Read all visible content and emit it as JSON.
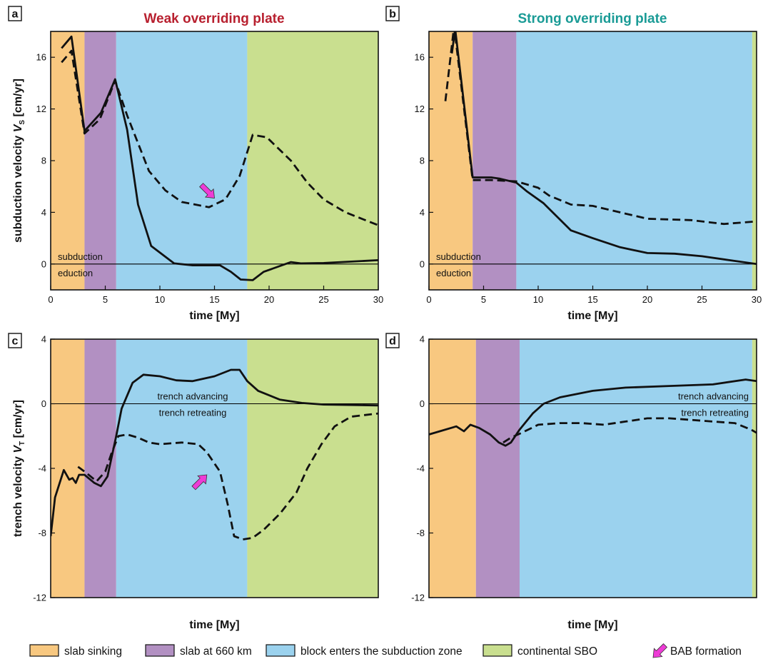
{
  "colors": {
    "slab_sinking": "#f8c880",
    "slab_660": "#b290c2",
    "block_enters": "#9bd2ee",
    "continental_sbo": "#c9df8f",
    "arrow": "#ee3bd6",
    "weak_title": "#b8202f",
    "strong_title": "#1a9b96"
  },
  "legend": [
    {
      "label": "slab sinking",
      "color_key": "slab_sinking",
      "icon": "swatch"
    },
    {
      "label": "slab at 660 km",
      "color_key": "slab_660",
      "icon": "swatch"
    },
    {
      "label": "block enters the subduction zone",
      "color_key": "block_enters",
      "icon": "swatch"
    },
    {
      "label": "continental SBO",
      "color_key": "continental_sbo",
      "icon": "swatch"
    },
    {
      "label": "BAB formation",
      "color_key": "arrow",
      "icon": "pink-arrow-icon"
    }
  ],
  "chart_data": [
    {
      "panel": "a",
      "type": "line",
      "title": "Weak overriding plate",
      "title_color_key": "weak_title",
      "xlabel": "time [My]",
      "ylabel": "subduction velocity V",
      "ylabel_sub": "S",
      "ylabel_unit": "[cm/yr]",
      "xlim": [
        0,
        30
      ],
      "ylim": [
        -2,
        18
      ],
      "xticks": [
        0,
        5,
        10,
        15,
        20,
        25,
        30
      ],
      "yticks": [
        0,
        4,
        8,
        12,
        16
      ],
      "phases": [
        {
          "from": 0,
          "to": 3.1,
          "color_key": "slab_sinking"
        },
        {
          "from": 3.1,
          "to": 6,
          "color_key": "slab_660"
        },
        {
          "from": 6,
          "to": 18,
          "color_key": "block_enters"
        },
        {
          "from": 18,
          "to": 30,
          "color_key": "continental_sbo"
        }
      ],
      "zero_labels": {
        "above": "subduction",
        "below": "eduction"
      },
      "arrow": {
        "x": 15,
        "y": 5.1,
        "direction": "down-right"
      },
      "series": [
        {
          "style": "solid",
          "x": [
            1,
            1.9,
            3.1,
            4.6,
            5.9,
            7,
            8,
            9.2,
            11.3,
            13,
            15.5,
            16.5,
            17.4,
            18.5,
            19.5,
            22,
            22.9,
            25,
            30
          ],
          "y": [
            16.7,
            17.6,
            10.3,
            11.7,
            14.3,
            10.4,
            4.6,
            1.4,
            0.05,
            -0.1,
            -0.1,
            -0.6,
            -1.2,
            -1.25,
            -0.6,
            0.15,
            0.05,
            0.08,
            0.3
          ]
        },
        {
          "style": "dashed",
          "x": [
            1,
            1.9,
            3.1,
            4.5,
            5.9,
            7,
            9,
            10.5,
            12,
            14.5,
            16,
            17.3,
            18.5,
            19.8,
            22,
            23.5,
            25,
            27,
            30
          ],
          "y": [
            15.6,
            16.5,
            10.1,
            11.2,
            14.2,
            11.5,
            7.2,
            5.7,
            4.8,
            4.4,
            5.0,
            6.8,
            10.0,
            9.8,
            8.0,
            6.3,
            5.0,
            4.0,
            3.0
          ]
        }
      ]
    },
    {
      "panel": "b",
      "type": "line",
      "title": "Strong overriding plate",
      "title_color_key": "strong_title",
      "xlabel": "time [My]",
      "ylabel": "",
      "xlim": [
        0,
        30
      ],
      "ylim": [
        -2,
        18
      ],
      "xticks": [
        0,
        5,
        10,
        15,
        20,
        25,
        30
      ],
      "yticks": [
        0,
        4,
        8,
        12,
        16
      ],
      "phases": [
        {
          "from": 0,
          "to": 4,
          "color_key": "slab_sinking"
        },
        {
          "from": 4,
          "to": 8,
          "color_key": "slab_660"
        },
        {
          "from": 8,
          "to": 29.6,
          "color_key": "block_enters"
        },
        {
          "from": 29.6,
          "to": 30,
          "color_key": "continental_sbo"
        }
      ],
      "zero_labels": {
        "above": "subduction",
        "below": "eduction"
      },
      "series": [
        {
          "style": "solid",
          "x": [
            2.1,
            2.4,
            4,
            5.7,
            6.5,
            8,
            9,
            10.5,
            13,
            15,
            17.5,
            20,
            22.5,
            25,
            27.5,
            30
          ],
          "y": [
            16.3,
            18.2,
            6.7,
            6.7,
            6.6,
            6.3,
            5.6,
            4.7,
            2.6,
            2.0,
            1.3,
            0.85,
            0.8,
            0.6,
            0.3,
            0.0
          ]
        },
        {
          "style": "dashed",
          "x": [
            1.5,
            2.3,
            4,
            5.7,
            8,
            10,
            11,
            13,
            15,
            18,
            20,
            24,
            27,
            30
          ],
          "y": [
            12.6,
            18.4,
            6.5,
            6.5,
            6.4,
            5.9,
            5.3,
            4.6,
            4.5,
            3.9,
            3.5,
            3.4,
            3.1,
            3.3
          ]
        }
      ]
    },
    {
      "panel": "c",
      "type": "line",
      "title": "",
      "xlabel": "time [My]",
      "ylabel": "trench velocity V",
      "ylabel_sub": "T",
      "ylabel_unit": "[cm/yr]",
      "xlim": [
        0,
        30
      ],
      "ylim": [
        -12,
        4
      ],
      "xticks": [],
      "yticks": [
        -12,
        -8,
        -4,
        0,
        4
      ],
      "phases": [
        {
          "from": 0,
          "to": 3.1,
          "color_key": "slab_sinking"
        },
        {
          "from": 3.1,
          "to": 6,
          "color_key": "slab_660"
        },
        {
          "from": 6,
          "to": 18,
          "color_key": "block_enters"
        },
        {
          "from": 18,
          "to": 30,
          "color_key": "continental_sbo"
        }
      ],
      "zero_labels": {
        "above": "trench advancing",
        "below": "trench retreating"
      },
      "arrow": {
        "x": 14.3,
        "y": -4.4,
        "direction": "up-right"
      },
      "series": [
        {
          "style": "solid",
          "x": [
            0,
            0.4,
            1.2,
            1.7,
            2.0,
            2.3,
            2.6,
            3.1,
            4,
            4.6,
            5.2,
            6,
            6.5,
            7.5,
            8.5,
            10,
            11.5,
            13,
            15,
            16.5,
            17.3,
            18,
            19,
            21,
            23,
            25,
            30
          ],
          "y": [
            -8.2,
            -5.8,
            -4.1,
            -4.7,
            -4.6,
            -4.9,
            -4.4,
            -4.4,
            -4.9,
            -5.1,
            -4.5,
            -2.0,
            -0.3,
            1.3,
            1.8,
            1.7,
            1.45,
            1.4,
            1.7,
            2.1,
            2.1,
            1.4,
            0.8,
            0.25,
            0.05,
            -0.05,
            -0.1
          ]
        },
        {
          "style": "dashed",
          "x": [
            2.5,
            3.3,
            4.2,
            5,
            5.6,
            6.2,
            7,
            8,
            9,
            10,
            12,
            13.5,
            14.3,
            15.5,
            16.2,
            16.8,
            17.6,
            18.5,
            19.5,
            21,
            22.5,
            23.5,
            24.8,
            26,
            27.5,
            30
          ],
          "y": [
            -3.9,
            -4.3,
            -4.8,
            -4.2,
            -3.0,
            -2.0,
            -1.9,
            -2.1,
            -2.4,
            -2.5,
            -2.4,
            -2.5,
            -3.0,
            -4.2,
            -6.2,
            -8.2,
            -8.4,
            -8.3,
            -7.8,
            -6.8,
            -5.5,
            -4.0,
            -2.5,
            -1.4,
            -0.8,
            -0.6
          ]
        }
      ]
    },
    {
      "panel": "d",
      "type": "line",
      "title": "",
      "xlabel": "time [My]",
      "ylabel": "",
      "xlim": [
        0,
        30
      ],
      "ylim": [
        -12,
        4
      ],
      "xticks": [],
      "yticks": [
        -12,
        -8,
        -4,
        0,
        4
      ],
      "phases": [
        {
          "from": 0,
          "to": 4.3,
          "color_key": "slab_sinking"
        },
        {
          "from": 4.3,
          "to": 8.3,
          "color_key": "slab_660"
        },
        {
          "from": 8.3,
          "to": 29.6,
          "color_key": "block_enters"
        },
        {
          "from": 29.6,
          "to": 30,
          "color_key": "continental_sbo"
        }
      ],
      "zero_labels": {
        "above": "trench advancing",
        "below": "trench retreating"
      },
      "series": [
        {
          "style": "solid",
          "x": [
            0,
            1,
            2.5,
            3.2,
            3.8,
            4.6,
            5.6,
            6.4,
            7,
            7.5,
            8.3,
            9.5,
            10.5,
            12,
            15,
            18,
            22,
            26,
            29,
            30
          ],
          "y": [
            -1.9,
            -1.7,
            -1.4,
            -1.7,
            -1.3,
            -1.5,
            -1.9,
            -2.4,
            -2.6,
            -2.4,
            -1.6,
            -0.6,
            0.0,
            0.4,
            0.8,
            1.0,
            1.1,
            1.2,
            1.5,
            1.4
          ]
        },
        {
          "style": "dashed",
          "x": [
            6.8,
            7.5,
            8.5,
            10,
            12,
            14,
            16,
            18,
            20,
            22,
            24,
            26,
            28,
            29.5,
            30
          ],
          "y": [
            -2.4,
            -2.1,
            -1.8,
            -1.3,
            -1.2,
            -1.2,
            -1.3,
            -1.1,
            -0.9,
            -0.9,
            -1.0,
            -1.1,
            -1.2,
            -1.6,
            -1.8
          ]
        }
      ]
    }
  ]
}
